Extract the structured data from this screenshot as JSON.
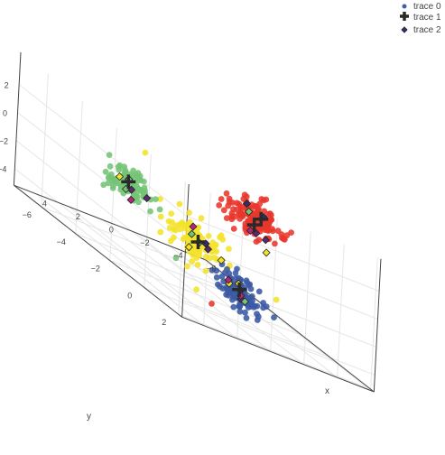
{
  "chart_data": {
    "type": "scatter",
    "dimensions": "3d",
    "axes": {
      "x": {
        "title": "x",
        "ticks": [
          "−6",
          "−4",
          "−2",
          "0",
          "2",
          "4"
        ],
        "range": [
          -6,
          5
        ]
      },
      "y": {
        "title": "y",
        "ticks": [
          "−6",
          "−4",
          "−2",
          "0",
          "2"
        ],
        "range": [
          -7,
          2
        ]
      },
      "z": {
        "title": "",
        "ticks": [
          "−4",
          "−2",
          "0",
          "2"
        ],
        "range": [
          -5,
          4
        ]
      },
      "grid": true
    },
    "legend": {
      "placement": "top-right",
      "entries": [
        {
          "name": "trace 0",
          "symbol": "circle",
          "color": "#3a62a8"
        },
        {
          "name": "trace 1",
          "symbol": "cross",
          "color": "#2a2a2a"
        },
        {
          "name": "trace 2",
          "symbol": "diamond",
          "color": "#30305a"
        }
      ]
    },
    "clusters": [
      {
        "label": "red",
        "color": "#e8372c",
        "center": [
          -1.8,
          -0.8,
          2.2
        ],
        "spread": 0.55,
        "count": 140
      },
      {
        "label": "green",
        "color": "#74c476",
        "center": [
          1.0,
          -5.2,
          -0.8
        ],
        "spread": 0.45,
        "count": 90
      },
      {
        "label": "yellow",
        "color": "#f4e22a",
        "center": [
          0.6,
          -1.6,
          -1.4
        ],
        "spread": 0.6,
        "count": 110
      },
      {
        "label": "blue",
        "color": "#3b5aa5",
        "center": [
          -0.6,
          -0.2,
          -3.1
        ],
        "spread": 0.45,
        "count": 120
      }
    ],
    "outliers": [
      {
        "x": 4.6,
        "y": -1.0,
        "z": 3.8,
        "color": "#f4e22a"
      },
      {
        "x": 1.5,
        "y": 0.2,
        "z": -4.4,
        "color": "#e8372c"
      },
      {
        "x": 1.6,
        "y": -0.6,
        "z": -4.2,
        "color": "#f4e22a"
      },
      {
        "x": 0.8,
        "y": -2.6,
        "z": -3.5,
        "color": "#74c476"
      },
      {
        "x": -2.6,
        "y": -0.1,
        "z": -2.5,
        "color": "#f4e22a"
      }
    ],
    "centroids": [
      {
        "x": 1.1,
        "y": -5.2,
        "z": -0.7
      },
      {
        "x": -1.6,
        "y": -0.6,
        "z": 1.9
      },
      {
        "x": -2.4,
        "y": -1.0,
        "z": 2.3
      },
      {
        "x": 0.6,
        "y": -1.6,
        "z": -1.3
      },
      {
        "x": -0.6,
        "y": -0.3,
        "z": -2.9
      }
    ],
    "diamond_colors": [
      "#3b2a6b",
      "#5b2a6e",
      "#74c476",
      "#f4e22a",
      "#b4267a"
    ]
  }
}
